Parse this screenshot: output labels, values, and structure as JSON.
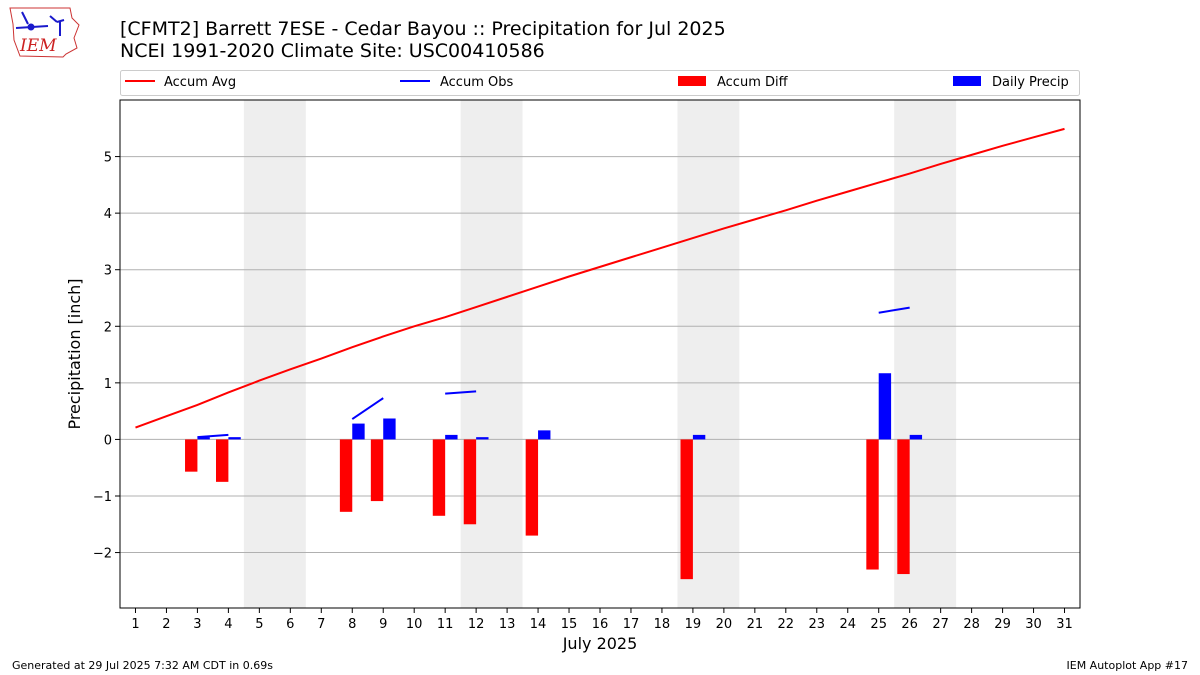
{
  "logo": {
    "text": "IEM",
    "icon": "iowa-state-weather-logo",
    "color": "#cc2222"
  },
  "title": {
    "line1": "[CFMT2] Barrett 7ESE - Cedar Bayou :: Precipitation for Jul 2025",
    "line2": "NCEI 1991-2020 Climate Site: USC00410586"
  },
  "footer": {
    "left": "Generated at 29 Jul 2025 7:32 AM CDT in 0.69s",
    "right": "IEM Autoplot App #17"
  },
  "chart_data": {
    "type": "bar",
    "xlabel": "July 2025",
    "ylabel": "Precipitation [inch]",
    "xlim": [
      0.5,
      31.5
    ],
    "ylim": [
      -2.98,
      6.0
    ],
    "y_ticks": [
      -2,
      -1,
      0,
      1,
      2,
      3,
      4,
      5
    ],
    "y_tick_labels": [
      "−2",
      "−1",
      "0",
      "1",
      "2",
      "3",
      "4",
      "5"
    ],
    "x_ticks": [
      1,
      2,
      3,
      4,
      5,
      6,
      7,
      8,
      9,
      10,
      11,
      12,
      13,
      14,
      15,
      16,
      17,
      18,
      19,
      20,
      21,
      22,
      23,
      24,
      25,
      26,
      27,
      28,
      29,
      30,
      31
    ],
    "grid": "horizontal",
    "legend_placement": "top",
    "weekend_shading": [
      [
        5,
        6
      ],
      [
        12,
        13
      ],
      [
        19,
        20
      ],
      [
        26,
        27
      ]
    ],
    "colors": {
      "accum_avg": "#ff0000",
      "accum_obs": "#0000ff",
      "accum_diff": "#ff0000",
      "daily_precip": "#0000ff",
      "shade": "#eeeeee",
      "grid": "#b0b0b0"
    },
    "legend": [
      {
        "label": "Accum Avg",
        "kind": "line",
        "color": "#ff0000"
      },
      {
        "label": "Accum Obs",
        "kind": "line",
        "color": "#0000ff"
      },
      {
        "label": "Accum Diff",
        "kind": "bar",
        "color": "#ff0000"
      },
      {
        "label": "Daily Precip",
        "kind": "bar",
        "color": "#0000ff"
      }
    ],
    "series": [
      {
        "name": "Accum Avg",
        "type": "line",
        "x": [
          1,
          2,
          3,
          4,
          5,
          6,
          7,
          8,
          9,
          10,
          11,
          12,
          13,
          14,
          15,
          16,
          17,
          18,
          19,
          20,
          21,
          22,
          23,
          24,
          25,
          26,
          27,
          28,
          29,
          30,
          31
        ],
        "values": [
          0.21,
          0.41,
          0.61,
          0.83,
          1.04,
          1.24,
          1.43,
          1.63,
          1.82,
          2.0,
          2.16,
          2.34,
          2.52,
          2.7,
          2.88,
          3.05,
          3.22,
          3.39,
          3.56,
          3.73,
          3.89,
          4.05,
          4.22,
          4.38,
          4.54,
          4.7,
          4.87,
          5.03,
          5.19,
          5.34,
          5.49
        ]
      },
      {
        "name": "Accum Obs",
        "type": "line",
        "segments": [
          {
            "x": [
              3,
              4
            ],
            "values": [
              0.04,
              0.08
            ]
          },
          {
            "x": [
              8,
              9
            ],
            "values": [
              0.36,
              0.73
            ]
          },
          {
            "x": [
              11,
              12
            ],
            "values": [
              0.81,
              0.85
            ]
          },
          {
            "x": [
              25,
              26
            ],
            "values": [
              2.24,
              2.33
            ]
          }
        ]
      },
      {
        "name": "Accum Diff",
        "type": "bar",
        "x": [
          3,
          4,
          8,
          9,
          11,
          12,
          14,
          19,
          25,
          26
        ],
        "values": [
          -0.57,
          -0.75,
          -1.28,
          -1.09,
          -1.35,
          -1.5,
          -1.7,
          -2.47,
          -2.3,
          -2.38
        ]
      },
      {
        "name": "Daily Precip",
        "type": "bar",
        "x": [
          3,
          4,
          8,
          9,
          11,
          12,
          14,
          19,
          25,
          26
        ],
        "values": [
          0.04,
          0.04,
          0.28,
          0.37,
          0.08,
          0.04,
          0.16,
          0.08,
          1.17,
          0.08
        ]
      }
    ]
  }
}
